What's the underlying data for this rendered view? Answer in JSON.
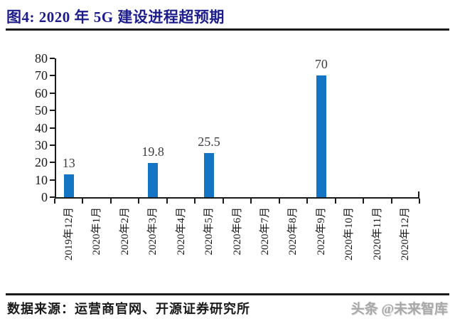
{
  "header": {
    "title": "图4: 2020 年 5G 建设进程超预期"
  },
  "colors": {
    "title": "#1c1c8c",
    "bar": "#1375c4",
    "axis": "#1a1a1a",
    "value_label": "#3d3d3d",
    "watermark": "#a8a8a8"
  },
  "chart_data": {
    "type": "bar",
    "title": "2020 年 5G 建设进程超预期",
    "categories": [
      "2019年12月",
      "2020年1月",
      "2020年2月",
      "2020年3月",
      "2020年4月",
      "2020年5月",
      "2020年6月",
      "2020年7月",
      "2020年8月",
      "2020年9月",
      "2020年10月",
      "2020年11月",
      "2020年12月"
    ],
    "values": [
      13,
      null,
      null,
      19.8,
      null,
      25.5,
      null,
      null,
      null,
      70,
      null,
      null,
      null
    ],
    "data_labels": [
      "13",
      "",
      "",
      "19.8",
      "",
      "25.5",
      "",
      "",
      "",
      "70",
      "",
      "",
      ""
    ],
    "xlabel": "",
    "ylabel": "",
    "ylim": [
      0,
      80
    ],
    "yticks": [
      0,
      10,
      20,
      30,
      40,
      50,
      60,
      70,
      80
    ],
    "grid": false,
    "legend": "none",
    "bar_color": "#1375c4"
  },
  "footer": {
    "source": "数据来源：运营商官网、开源证券研究所",
    "watermark": "头条 @未来智库"
  }
}
